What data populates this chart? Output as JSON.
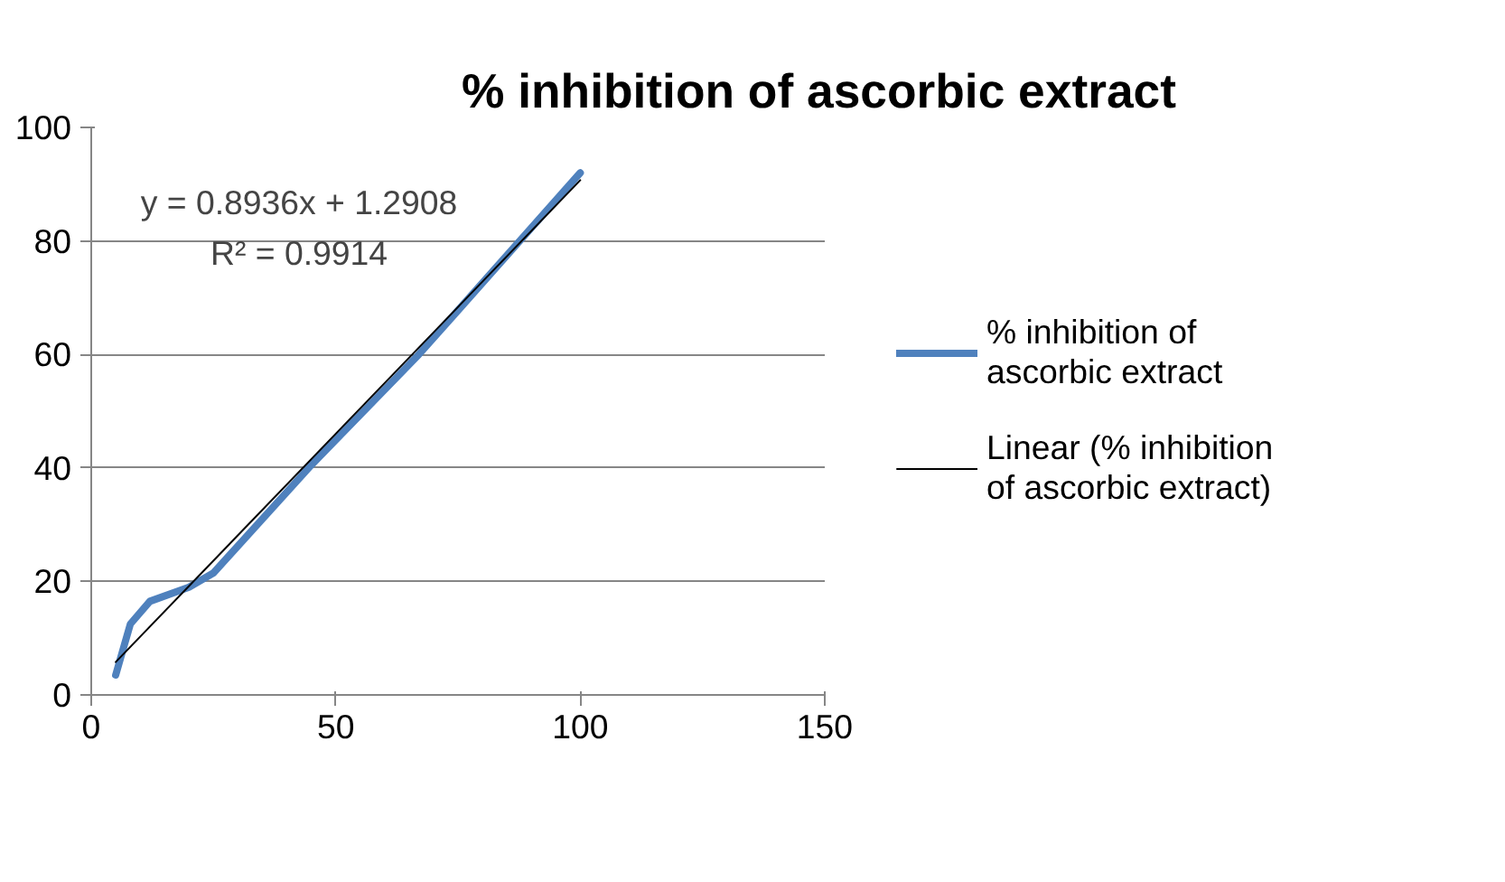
{
  "chart_data": {
    "type": "line",
    "title": "% inhibition of ascorbic extract",
    "series": [
      {
        "name": "% inhibition of ascorbic extract",
        "color": "#4f81bd",
        "x": [
          5,
          8,
          12,
          20,
          25,
          45,
          67,
          100
        ],
        "values": [
          3.5,
          12.5,
          16.5,
          19,
          21.5,
          40.5,
          60,
          92
        ]
      },
      {
        "name": "Linear (% inhibition of ascorbic extract)",
        "color": "#000000",
        "x": [
          5,
          100
        ],
        "values": [
          5.8,
          90.7
        ]
      }
    ],
    "xlim": [
      0,
      150
    ],
    "xticks": [
      0,
      50,
      100,
      150
    ],
    "ylim": [
      0,
      100
    ],
    "yticks": [
      0,
      20,
      40,
      60,
      80,
      100
    ],
    "grid": "y",
    "legend": "right",
    "marker": "none",
    "line_style": "solid",
    "annotations": [
      "y = 0.8936x + 1.2908",
      "R² = 0.9914"
    ]
  }
}
